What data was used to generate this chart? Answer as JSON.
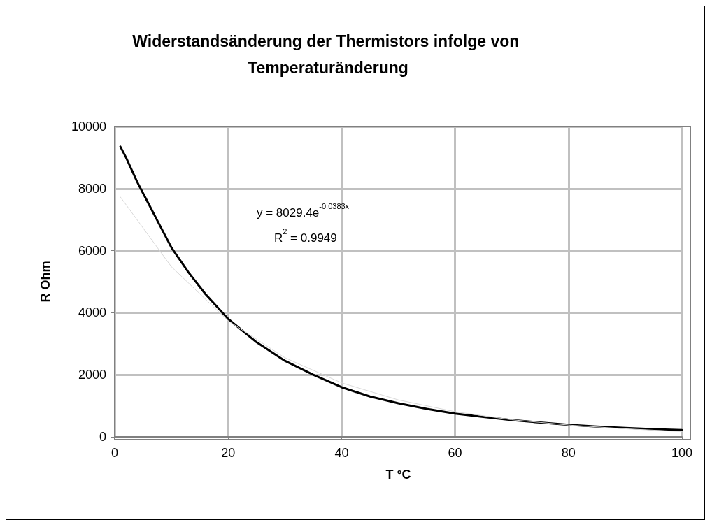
{
  "chart_data": {
    "type": "line",
    "title": "Widerstandsänderung der Thermistors infolge von Temperaturänderung",
    "xlabel": "T °C",
    "ylabel": "R Ohm",
    "xlim": [
      0,
      100
    ],
    "xticks": [
      0,
      20,
      40,
      60,
      80,
      100
    ],
    "ylim": [
      0,
      10000
    ],
    "yticks": [
      0,
      2000,
      4000,
      6000,
      8000,
      10000
    ],
    "grid": true,
    "marker": "none",
    "line_style": "solid",
    "annotations": [
      "y = 8029.4e$^{-0.0383x}$",
      "R$^{2}$ = 0.9949"
    ],
    "series": [
      {
        "color": "#000000",
        "x": [
          1,
          2,
          3,
          4,
          5,
          6,
          8,
          10,
          13,
          16,
          18,
          20,
          25,
          30,
          35,
          40,
          45,
          50,
          55,
          60,
          65,
          70,
          75,
          80,
          85,
          90,
          95,
          100
        ],
        "values": [
          9350,
          9000,
          8600,
          8200,
          7850,
          7500,
          6800,
          6100,
          5300,
          4600,
          4200,
          3800,
          3050,
          2450,
          2000,
          1600,
          1300,
          1080,
          900,
          750,
          640,
          540,
          460,
          390,
          330,
          290,
          250,
          220
        ]
      },
      {
        "color": "#d8d8d8",
        "x": [
          1,
          10,
          20,
          30,
          40,
          50,
          60,
          70,
          80,
          90,
          100
        ],
        "values": [
          7730,
          5480,
          3740,
          2550,
          1740,
          1190,
          810,
          550,
          380,
          260,
          170
        ]
      }
    ]
  }
}
